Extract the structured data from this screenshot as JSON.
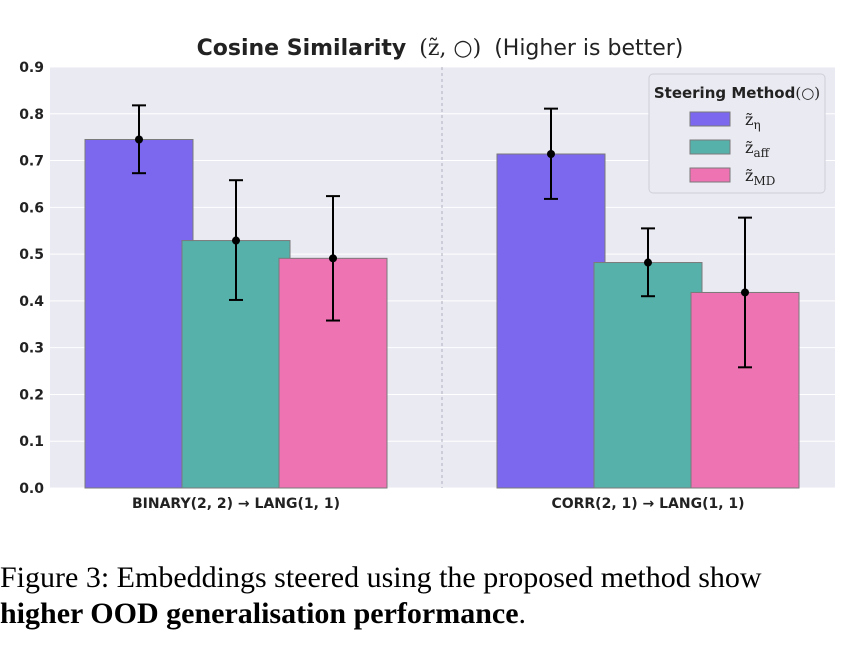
{
  "chart_data": {
    "type": "bar",
    "title_main": "Cosine Similarity",
    "title_math": "(z̃, ○)",
    "title_suffix": "(Higher is better)",
    "categories": [
      "BINARY(2, 2) → LANG(1, 1)",
      "CORR(2, 1) → LANG(1, 1)"
    ],
    "series": [
      {
        "name": "z̃_η",
        "label_base": "z̃",
        "label_sub": "η",
        "color": "#7b68ee",
        "values": [
          0.745,
          0.714
        ],
        "err_low": [
          0.673,
          0.618
        ],
        "err_high": [
          0.818,
          0.811
        ]
      },
      {
        "name": "z̃_aff",
        "label_base": "z̃",
        "label_sub": "aff",
        "color": "#55b1aa",
        "values": [
          0.529,
          0.482
        ],
        "err_low": [
          0.402,
          0.41
        ],
        "err_high": [
          0.658,
          0.555
        ]
      },
      {
        "name": "z̃_MD",
        "label_base": "z̃",
        "label_sub": "MD",
        "color": "#ee73b2",
        "values": [
          0.491,
          0.418
        ],
        "err_low": [
          0.358,
          0.258
        ],
        "err_high": [
          0.624,
          0.578
        ]
      }
    ],
    "yticks": [
      "0.0",
      "0.1",
      "0.2",
      "0.3",
      "0.4",
      "0.5",
      "0.6",
      "0.7",
      "0.8",
      "0.9"
    ],
    "ylim": [
      0,
      0.9
    ],
    "xlabel": "",
    "ylabel": "",
    "legend_title": "Steering Method",
    "legend_title_symbol": "(○)",
    "legend_position": "top-right",
    "grid": true,
    "background": "#eaeaf2"
  },
  "caption": {
    "line1": "Figure 3: Embeddings steered using the proposed method show",
    "line2_bold": "higher OOD generalisation performance",
    "line2_end": "."
  }
}
